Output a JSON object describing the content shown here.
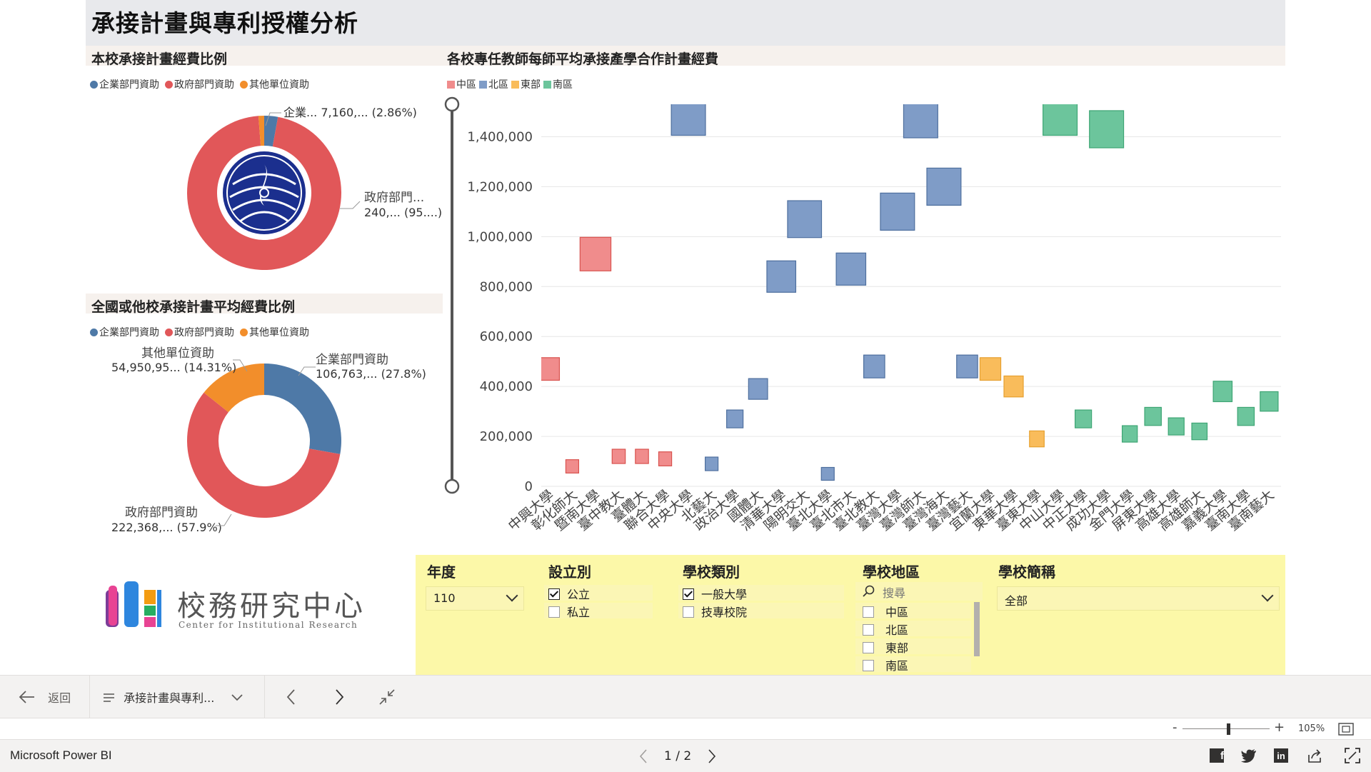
{
  "report": {
    "title": "承接計畫與專利授權分析"
  },
  "own_pie": {
    "title": "本校承接計畫經費比例",
    "legend": [
      "企業部門資助",
      "政府部門資助",
      "其他單位資助"
    ],
    "labels": {
      "enterprise": "企業... 7,160,... (2.86%)",
      "gov_name": "政府部門...",
      "gov_value": "240,... (95....)"
    }
  },
  "national_pie": {
    "title": "全國或他校承接計畫平均經費比例",
    "legend": [
      "企業部門資助",
      "政府部門資助",
      "其他單位資助"
    ],
    "labels": {
      "enterprise_name": "企業部門資助",
      "enterprise_value": "106,763,... (27.8%)",
      "gov_name": "政府部門資助",
      "gov_value": "222,368,... (57.9%)",
      "other_name": "其他單位資助",
      "other_value": "54,950,95... (14.31%)"
    }
  },
  "bar_chart": {
    "title": "各校專任教師每師平均承接產學合作計畫經費"
  },
  "colors": {
    "enterprise": "#4e79a7",
    "government": "#e15759",
    "other": "#f28e2b",
    "central": "#f08c8c",
    "north": "#7f9cc7",
    "east": "#f9bc5b",
    "south": "#6cc59c",
    "logo_navy": "#1b2f8e",
    "filter_bg": "#fcf8a8"
  },
  "chart_data": [
    {
      "type": "pie",
      "title": "本校承接計畫經費比例",
      "categories": [
        "企業部門資助",
        "政府部門資助",
        "其他單位資助"
      ],
      "values": [
        2.86,
        95.95,
        1.19
      ],
      "unit": "%"
    },
    {
      "type": "pie",
      "title": "全國或他校承接計畫平均經費比例",
      "categories": [
        "企業部門資助",
        "政府部門資助",
        "其他單位資助"
      ],
      "values": [
        27.8,
        57.9,
        14.31
      ],
      "unit": "%"
    },
    {
      "type": "bar",
      "title": "各校專任教師每師平均承接產學合作計畫經費",
      "legend": [
        "中區",
        "北區",
        "東部",
        "南區"
      ],
      "y_ticks": [
        "0",
        "200,000",
        "400,000",
        "600,000",
        "800,000",
        "1,000,000",
        "1,200,000",
        "1,400,000"
      ],
      "ylim": [
        0,
        1530000
      ],
      "categories": [
        "中興大學",
        "彰化師大",
        "暨南大學",
        "臺中教大",
        "臺體大",
        "聯合大學",
        "中央大學",
        "北藝大",
        "政治大學",
        "國體大",
        "清華大學",
        "陽明交大",
        "臺北大學",
        "臺北市大",
        "臺北教大",
        "臺灣大學",
        "臺灣師大",
        "臺灣海大",
        "臺灣藝大",
        "宜蘭大學",
        "東華大學",
        "臺東大學",
        "中山大學",
        "中正大學",
        "成功大學",
        "金門大學",
        "屏東大學",
        "高雄大學",
        "高雄師大",
        "嘉義大學",
        "臺南大學",
        "臺南藝大"
      ],
      "regions": [
        "中區",
        "中區",
        "中區",
        "中區",
        "中區",
        "中區",
        "北區",
        "北區",
        "北區",
        "北區",
        "北區",
        "北區",
        "北區",
        "北區",
        "北區",
        "北區",
        "北區",
        "北區",
        "北區",
        "東部",
        "東部",
        "東部",
        "南區",
        "南區",
        "南區",
        "南區",
        "南區",
        "南區",
        "南區",
        "南區",
        "南區",
        "南區"
      ],
      "values": [
        470000,
        80000,
        930000,
        120000,
        120000,
        110000,
        1480000,
        90000,
        270000,
        390000,
        840000,
        1070000,
        50000,
        870000,
        480000,
        1100000,
        1470000,
        1200000,
        480000,
        470000,
        400000,
        190000,
        1480000,
        270000,
        1430000,
        210000,
        280000,
        240000,
        220000,
        380000,
        280000,
        340000
      ]
    }
  ],
  "logo": {
    "name": "校務研究中心",
    "subtitle": "Center for Institutional Research"
  },
  "filters": {
    "year": {
      "title": "年度",
      "value": "110"
    },
    "establishment": {
      "title": "設立別",
      "options": [
        {
          "label": "公立",
          "checked": true
        },
        {
          "label": "私立",
          "checked": false
        }
      ]
    },
    "school_type": {
      "title": "學校類別",
      "options": [
        {
          "label": "一般大學",
          "checked": true
        },
        {
          "label": "技專校院",
          "checked": false
        }
      ]
    },
    "region": {
      "title": "學校地區",
      "search_placeholder": "搜尋",
      "options": [
        {
          "label": "中區"
        },
        {
          "label": "北區"
        },
        {
          "label": "東部"
        },
        {
          "label": "南區"
        }
      ]
    },
    "school": {
      "title": "學校簡稱",
      "value": "全部"
    }
  },
  "navbar": {
    "back": "返回",
    "page_dropdown": "承接計畫與專利..."
  },
  "zoom": {
    "level": "105%"
  },
  "footer": {
    "app": "Microsoft Power BI",
    "page": "1 / 2"
  }
}
